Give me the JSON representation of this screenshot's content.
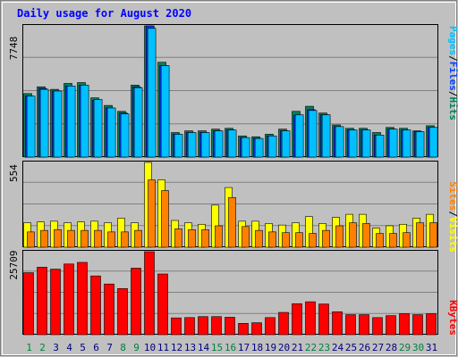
{
  "chart_data": [
    {
      "type": "bar",
      "title": "Daily usage for August 2020",
      "categories": [
        "1",
        "2",
        "3",
        "4",
        "5",
        "6",
        "7",
        "8",
        "9",
        "10",
        "11",
        "12",
        "13",
        "14",
        "15",
        "16",
        "17",
        "18",
        "19",
        "20",
        "21",
        "22",
        "23",
        "24",
        "25",
        "26",
        "27",
        "28",
        "29",
        "30",
        "31"
      ],
      "weekend_days": [
        "1",
        "2",
        "8",
        "9",
        "15",
        "16",
        "22",
        "23",
        "29",
        "30"
      ],
      "ylim": [
        0,
        7748
      ],
      "ytick_label": "7748",
      "series": [
        {
          "name": "Hits",
          "values": [
            3750,
            4150,
            4000,
            4350,
            4400,
            3500,
            3050,
            2700,
            4250,
            7748,
            5600,
            1450,
            1550,
            1550,
            1650,
            1700,
            1250,
            1200,
            1350,
            1650,
            2700,
            3000,
            2600,
            1900,
            1700,
            1700,
            1450,
            1750,
            1700,
            1550,
            1850
          ]
        },
        {
          "name": "Files",
          "values": [
            3600,
            4050,
            3900,
            4200,
            4250,
            3350,
            2900,
            2600,
            4150,
            7748,
            5400,
            1350,
            1450,
            1450,
            1550,
            1600,
            1150,
            1100,
            1250,
            1550,
            2450,
            2800,
            2500,
            1800,
            1600,
            1600,
            1300,
            1650,
            1600,
            1500,
            1750
          ]
        },
        {
          "name": "Pages",
          "values": [
            3600,
            4000,
            3900,
            4200,
            4250,
            3400,
            2900,
            2550,
            4100,
            7600,
            5400,
            1350,
            1450,
            1450,
            1550,
            1600,
            1150,
            1100,
            1250,
            1550,
            2500,
            2750,
            2500,
            1800,
            1600,
            1600,
            1300,
            1650,
            1600,
            1500,
            1750
          ]
        }
      ],
      "legend": [
        "Pages",
        "Files",
        "Hits"
      ],
      "legend_separator": "/",
      "legend_placement": "right"
    },
    {
      "type": "bar",
      "categories": [
        "1",
        "2",
        "3",
        "4",
        "5",
        "6",
        "7",
        "8",
        "9",
        "10",
        "11",
        "12",
        "13",
        "14",
        "15",
        "16",
        "17",
        "18",
        "19",
        "20",
        "21",
        "22",
        "23",
        "24",
        "25",
        "26",
        "27",
        "28",
        "29",
        "30",
        "31"
      ],
      "ylim": [
        0,
        554
      ],
      "ytick_label": "554",
      "series": [
        {
          "name": "Visits",
          "values": [
            160,
            165,
            170,
            160,
            165,
            170,
            160,
            190,
            160,
            554,
            440,
            175,
            160,
            150,
            275,
            390,
            170,
            170,
            155,
            145,
            160,
            200,
            155,
            195,
            215,
            215,
            125,
            140,
            150,
            190,
            215
          ]
        },
        {
          "name": "Sites",
          "values": [
            100,
            110,
            115,
            110,
            110,
            110,
            100,
            100,
            110,
            440,
            370,
            120,
            115,
            115,
            140,
            325,
            135,
            110,
            100,
            95,
            95,
            90,
            110,
            140,
            160,
            155,
            90,
            90,
            95,
            160,
            160
          ]
        }
      ],
      "legend": [
        "Sites",
        "Visits"
      ],
      "legend_separator": "/",
      "legend_placement": "right"
    },
    {
      "type": "bar",
      "categories": [
        "1",
        "2",
        "3",
        "4",
        "5",
        "6",
        "7",
        "8",
        "9",
        "10",
        "11",
        "12",
        "13",
        "14",
        "15",
        "16",
        "17",
        "18",
        "19",
        "20",
        "21",
        "22",
        "23",
        "24",
        "25",
        "26",
        "27",
        "28",
        "29",
        "30",
        "31"
      ],
      "ylim": [
        0,
        25709
      ],
      "ytick_label": "25709",
      "series": [
        {
          "name": "KBytes",
          "values": [
            19200,
            20900,
            20300,
            21900,
            22400,
            18200,
            15700,
            14300,
            20600,
            25709,
            18800,
            5200,
            5300,
            5600,
            5600,
            5400,
            3500,
            3700,
            5300,
            6900,
            9600,
            10200,
            9500,
            7100,
            6200,
            6200,
            5300,
            5900,
            6500,
            6200,
            6500
          ]
        }
      ],
      "legend": [
        "KBytes"
      ],
      "legend_placement": "right"
    }
  ],
  "colors": {
    "background": "#c0c0c0",
    "plot_bg": "#c0c0c0",
    "gridline": "#808080",
    "title": "#0000ff",
    "axis_text": "#000000",
    "weekday_label": "#000080",
    "weekend_label": "#008040",
    "hits": "#00805c",
    "files": "#0040ff",
    "pages": "#00c0ff",
    "visits": "#ffff00",
    "sites": "#ff8000",
    "kbytes": "#ff0000"
  }
}
